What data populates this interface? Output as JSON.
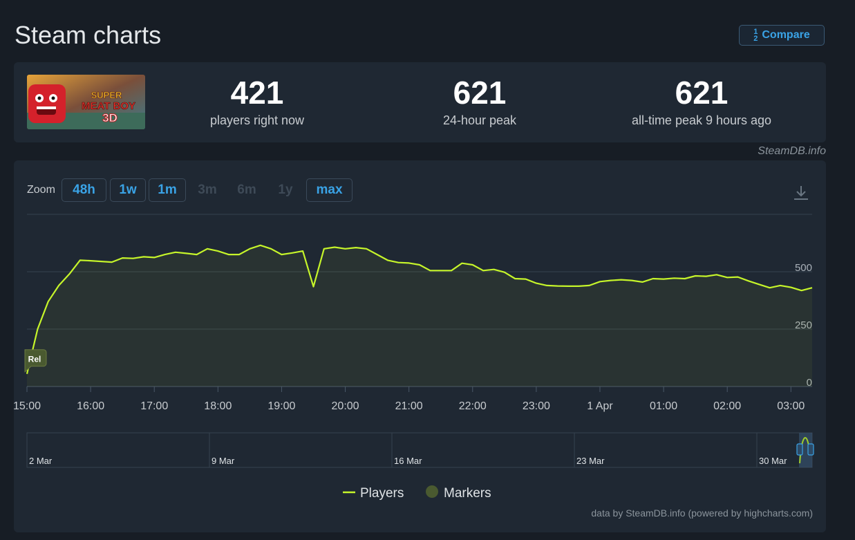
{
  "page": {
    "title": "Steam charts",
    "compare_label": "Compare",
    "compare_icon": "compare-icon"
  },
  "stats": [
    {
      "value": "421",
      "label": "players right now"
    },
    {
      "value": "621",
      "label": "24-hour peak"
    },
    {
      "value": "621",
      "label": "all-time peak 9 hours ago"
    }
  ],
  "capsule": {
    "logo_text": [
      "SUPER",
      "MEAT BOY",
      "3D"
    ]
  },
  "credit_top": "SteamDB.info",
  "zoom": {
    "label": "Zoom",
    "buttons": [
      {
        "label": "48h",
        "enabled": true
      },
      {
        "label": "1w",
        "enabled": true
      },
      {
        "label": "1m",
        "enabled": true
      },
      {
        "label": "3m",
        "enabled": false
      },
      {
        "label": "6m",
        "enabled": false
      },
      {
        "label": "1y",
        "enabled": false
      },
      {
        "label": "max",
        "enabled": true
      }
    ]
  },
  "credit_bottom": "data by SteamDB.info (powered by highcharts.com)",
  "colors": {
    "players_line": "#c6f52a",
    "marker": "#4a5a30",
    "navigator_line": "#9fcd2c",
    "accent": "#3aa3e6"
  },
  "chart_data": {
    "type": "line",
    "x_start": "15:00",
    "x_end": "03:07",
    "x_step_minutes": 10,
    "x_tick_labels": [
      "15:00",
      "16:00",
      "17:00",
      "18:00",
      "19:00",
      "20:00",
      "21:00",
      "22:00",
      "23:00",
      "1 Apr",
      "01:00",
      "02:00",
      "03:00"
    ],
    "y_ticks": [
      0,
      250,
      500
    ],
    "ylim": [
      0,
      750
    ],
    "series": [
      {
        "name": "Players",
        "values": [
          55,
          250,
          370,
          440,
          490,
          550,
          548,
          545,
          542,
          560,
          558,
          565,
          562,
          575,
          585,
          580,
          575,
          600,
          590,
          575,
          575,
          600,
          615,
          600,
          575,
          582,
          590,
          435,
          600,
          607,
          600,
          605,
          600,
          575,
          550,
          540,
          538,
          530,
          505,
          505,
          505,
          537,
          530,
          505,
          510,
          498,
          470,
          468,
          450,
          440,
          438,
          437,
          437,
          440,
          457,
          462,
          465,
          462,
          455,
          470,
          468,
          472,
          470,
          482,
          480,
          487,
          475,
          477,
          460,
          445,
          430,
          440,
          432,
          418,
          430
        ]
      }
    ],
    "markers": [
      {
        "label": "Rel",
        "x_index": 0
      }
    ],
    "navigator": {
      "labels": [
        "2 Mar",
        "9 Mar",
        "16 Mar",
        "23 Mar",
        "30 Mar"
      ]
    },
    "legend": {
      "position": "bottom-center",
      "items": [
        "Players",
        "Markers"
      ]
    },
    "grid": true
  }
}
